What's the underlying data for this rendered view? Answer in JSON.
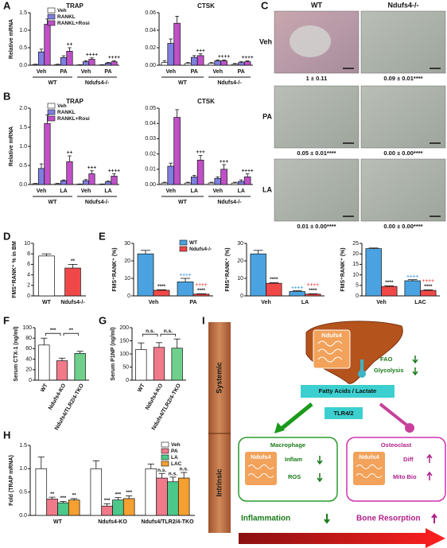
{
  "panel_labels": [
    "A",
    "B",
    "C",
    "D",
    "E",
    "F",
    "G",
    "H",
    "I"
  ],
  "chart_data": [
    {
      "type": "bar",
      "title": "TRAP",
      "y_label": "Relative mRNA",
      "categories": [
        "Veh",
        "PA",
        "Veh",
        "PA"
      ],
      "groups": [
        "WT",
        "Ndufs4-/-"
      ],
      "series": [
        {
          "name": "Veh",
          "color": "#ffffff",
          "values": [
            0.02,
            0.02,
            0.01,
            0.01
          ],
          "errors": [
            0.01,
            0.01,
            0.005,
            0.005
          ]
        },
        {
          "name": "RANKL",
          "color": "#7f7fe0",
          "values": [
            0.38,
            0.22,
            0.1,
            0.06
          ],
          "errors": [
            0.08,
            0.05,
            0.03,
            0.02
          ]
        },
        {
          "name": "RANKL+Rosi",
          "color": "#c050c8",
          "values": [
            1.17,
            0.4,
            0.17,
            0.1
          ],
          "errors": [
            0.15,
            0.1,
            0.04,
            0.03
          ],
          "sig_labels": [
            null,
            [
              "++"
            ],
            [
              "++++"
            ],
            [
              "++++"
            ]
          ]
        }
      ],
      "ylim": [
        0,
        1.5
      ],
      "yticks": [
        {
          "value": 0,
          "label": "0.0"
        },
        {
          "value": 0.5,
          "label": "0.5"
        },
        {
          "value": 1,
          "label": "1.0"
        },
        {
          "value": 1.5,
          "label": "1.5"
        }
      ],
      "legend": "top-left"
    },
    {
      "type": "bar",
      "title": "CTSK",
      "categories": [
        "Veh",
        "PA",
        "Veh",
        "PA"
      ],
      "groups": [
        "WT",
        "Ndufs4-/-"
      ],
      "series": [
        {
          "name": "Veh",
          "color": "#ffffff",
          "values": [
            0.003,
            0.002,
            0.002,
            0.001
          ],
          "errors": [
            0.002,
            0.001,
            0.001,
            0.001
          ]
        },
        {
          "name": "RANKL",
          "color": "#7f7fe0",
          "values": [
            0.025,
            0.009,
            0.005,
            0.003
          ],
          "errors": [
            0.005,
            0.002,
            0.001,
            0.001
          ]
        },
        {
          "name": "RANKL+Rosi",
          "color": "#c050c8",
          "values": [
            0.048,
            0.011,
            0.005,
            0.004
          ],
          "errors": [
            0.008,
            0.002,
            0.001,
            0.001
          ],
          "sig_labels": [
            null,
            [
              "+++"
            ],
            [
              "++++"
            ],
            [
              "++++"
            ]
          ]
        }
      ],
      "ylim": [
        0,
        0.06
      ],
      "yticks": [
        {
          "value": 0,
          "label": "0.00"
        },
        {
          "value": 0.02,
          "label": "0.02"
        },
        {
          "value": 0.04,
          "label": "0.04"
        },
        {
          "value": 0.06,
          "label": "0.06"
        }
      ]
    },
    {
      "type": "bar",
      "title": "TRAP",
      "y_label": "Relative mRNA",
      "categories": [
        "Veh",
        "LA",
        "Veh",
        "LA"
      ],
      "groups": [
        "WT",
        "Ndufs4-/-"
      ],
      "series": [
        {
          "name": "Veh",
          "color": "#ffffff",
          "values": [
            0.02,
            0.02,
            0.01,
            0.01
          ],
          "errors": [
            0.01,
            0.01,
            0.005,
            0.005
          ]
        },
        {
          "name": "RANKL",
          "color": "#7f7fe0",
          "values": [
            0.42,
            0.1,
            0.1,
            0.07
          ],
          "errors": [
            0.12,
            0.02,
            0.03,
            0.02
          ]
        },
        {
          "name": "RANKL+Rosi",
          "color": "#c050c8",
          "values": [
            1.6,
            0.6,
            0.28,
            0.22
          ],
          "errors": [
            0.22,
            0.15,
            0.08,
            0.06
          ],
          "sig_labels": [
            null,
            [
              "++"
            ],
            [
              "+++"
            ],
            [
              "++++"
            ]
          ]
        }
      ],
      "ylim": [
        0,
        2
      ],
      "yticks": [
        {
          "value": 0,
          "label": "0.0"
        },
        {
          "value": 0.5,
          "label": "0.5"
        },
        {
          "value": 1,
          "label": "1.0"
        },
        {
          "value": 1.5,
          "label": "1.5"
        },
        {
          "value": 2,
          "label": "2.0"
        }
      ],
      "legend": "top-left"
    },
    {
      "type": "bar",
      "title": "CTSK",
      "categories": [
        "Veh",
        "LA",
        "Veh",
        "LA"
      ],
      "groups": [
        "WT",
        "Ndufs4-/-"
      ],
      "series": [
        {
          "name": "Veh",
          "color": "#ffffff",
          "values": [
            0.001,
            0.001,
            0.001,
            0.001
          ],
          "errors": [
            0.0005,
            0.0005,
            0.0005,
            0.0005
          ]
        },
        {
          "name": "RANKL",
          "color": "#7f7fe0",
          "values": [
            0.012,
            0.005,
            0.004,
            0.002
          ],
          "errors": [
            0.002,
            0.001,
            0.001,
            0.001
          ]
        },
        {
          "name": "RANKL+Rosi",
          "color": "#c050c8",
          "values": [
            0.044,
            0.016,
            0.01,
            0.005
          ],
          "errors": [
            0.005,
            0.003,
            0.003,
            0.002
          ],
          "sig_labels": [
            null,
            [
              "+++"
            ],
            [
              "+++"
            ],
            [
              "++++"
            ]
          ]
        }
      ],
      "ylim": [
        0,
        0.05
      ],
      "yticks": [
        {
          "value": 0,
          "label": "0.00"
        },
        {
          "value": 0.01,
          "label": "0.01"
        },
        {
          "value": 0.02,
          "label": "0.02"
        },
        {
          "value": 0.03,
          "label": "0.03"
        },
        {
          "value": 0.04,
          "label": "0.04"
        },
        {
          "value": 0.05,
          "label": "0.05"
        }
      ]
    },
    {
      "type": "bar",
      "y_label": "FMS⁺RANK⁺ % in BM",
      "categories": [
        "WT",
        "Ndufs4-/-"
      ],
      "values": [
        7.6,
        5.3
      ],
      "errors": [
        0.4,
        0.7
      ],
      "colors": [
        "#ffffff",
        "#f04848"
      ],
      "sig_labels": [
        null,
        [
          "**"
        ]
      ],
      "ylim": [
        0,
        10
      ],
      "yticks": [
        0,
        2,
        4,
        6,
        8,
        10
      ]
    },
    {
      "type": "bar",
      "y_label": "FMS⁺RANK⁺ (%)",
      "categories": [
        "Veh",
        "PA"
      ],
      "sig_colored": true,
      "series": [
        {
          "name": "WT",
          "color": "#4aa3e0",
          "values": [
            24,
            8
          ],
          "errors": [
            2,
            2
          ],
          "sig_labels": [
            null,
            [
              "++++"
            ]
          ]
        },
        {
          "name": "Ndufs4-/-",
          "color": "#f04848",
          "values": [
            3.2,
            1
          ],
          "errors": [
            0.3,
            0.2
          ],
          "sig_labels": [
            [
              "****"
            ],
            [
              "++++",
              "****"
            ]
          ]
        }
      ],
      "ylim": [
        0,
        30
      ],
      "yticks": [
        0,
        10,
        20,
        30
      ],
      "legend": "top-right"
    },
    {
      "type": "bar",
      "y_label": "FMS⁺RANK⁺ (%)",
      "categories": [
        "Veh",
        "LA"
      ],
      "sig_colored": true,
      "series": [
        {
          "name": "WT",
          "color": "#4aa3e0",
          "values": [
            24,
            2.5
          ],
          "errors": [
            2,
            0.4
          ],
          "sig_labels": [
            null,
            [
              "++++"
            ]
          ]
        },
        {
          "name": "Ndufs4-/-",
          "color": "#f04848",
          "values": [
            7.2,
            1
          ],
          "errors": [
            0.4,
            0.2
          ],
          "sig_labels": [
            [
              "****"
            ],
            [
              "++++",
              "****"
            ]
          ]
        }
      ],
      "ylim": [
        0,
        30
      ],
      "yticks": [
        0,
        10,
        20,
        30
      ]
    },
    {
      "type": "bar",
      "y_label": "FMS⁺RANK⁺ (%)",
      "categories": [
        "Veh",
        "LAC"
      ],
      "sig_colored": true,
      "series": [
        {
          "name": "WT",
          "color": "#4aa3e0",
          "values": [
            22.5,
            7.2
          ],
          "errors": [
            0.3,
            0.5
          ],
          "sig_labels": [
            null,
            [
              "++++"
            ]
          ]
        },
        {
          "name": "Ndufs4-/-",
          "color": "#f04848",
          "values": [
            4.5,
            2.6
          ],
          "errors": [
            0.3,
            0.3
          ],
          "sig_labels": [
            [
              "****"
            ],
            [
              "++++",
              "****"
            ]
          ]
        }
      ],
      "ylim": [
        0,
        25
      ],
      "yticks": [
        0,
        5,
        10,
        15,
        20,
        25
      ]
    },
    {
      "type": "bar",
      "y_label": "Serum CTX-1 (ng/ml)",
      "categories": [
        "WT",
        "Ndufs4-KO",
        "Ndufs4/TLR2/4-TKO"
      ],
      "values": [
        67,
        37,
        51
      ],
      "errors": [
        13,
        5,
        4
      ],
      "colors": [
        "#ffffff",
        "#f07a8a",
        "#6fd08c"
      ],
      "brackets": [
        "***",
        "**"
      ],
      "rotate_labels": true,
      "ylim": [
        0,
        100
      ],
      "yticks": [
        0,
        20,
        40,
        60,
        80,
        100
      ]
    },
    {
      "type": "bar",
      "y_label": "Serum P1NP (ng/ml)",
      "categories": [
        "WT",
        "Ndufs4-KO",
        "Ndufs4/TLR2/4-TKO"
      ],
      "values": [
        117,
        125,
        122
      ],
      "errors": [
        25,
        18,
        35
      ],
      "colors": [
        "#ffffff",
        "#f07a8a",
        "#6fd08c"
      ],
      "brackets": [
        "n.s.",
        "n.s."
      ],
      "rotate_labels": true,
      "ylim": [
        0,
        200
      ],
      "yticks": [
        0,
        50,
        100,
        150,
        200
      ]
    },
    {
      "type": "bar",
      "y_label": "Fold (TRAP mRNA)",
      "categories": [
        "WT",
        "Ndufs4-KO",
        "Ndufs4/TLR2/4-TKO"
      ],
      "series": [
        {
          "name": "Veh",
          "color": "#ffffff",
          "values": [
            1,
            1,
            1
          ],
          "errors": [
            0.25,
            0.17,
            0.1
          ]
        },
        {
          "name": "PA",
          "color": "#f07a8a",
          "values": [
            0.35,
            0.2,
            0.8
          ],
          "errors": [
            0.04,
            0.05,
            0.1
          ],
          "sig_labels": [
            [
              "**"
            ],
            [
              "***"
            ],
            [
              "n.s."
            ]
          ]
        },
        {
          "name": "LA",
          "color": "#4cc98a",
          "values": [
            0.27,
            0.33,
            0.72
          ],
          "errors": [
            0.03,
            0.05,
            0.1
          ],
          "sig_labels": [
            [
              "***"
            ],
            [
              "***"
            ],
            [
              "n.s."
            ]
          ]
        },
        {
          "name": "LAC",
          "color": "#f5a030",
          "values": [
            0.33,
            0.36,
            0.8
          ],
          "errors": [
            0.03,
            0.06,
            0.12
          ],
          "sig_labels": [
            [
              "**"
            ],
            [
              "***"
            ],
            [
              "n.s."
            ]
          ]
        }
      ],
      "ylim": [
        0,
        1.5
      ],
      "yticks": [
        {
          "value": 0,
          "label": "0.0"
        },
        {
          "value": 0.5,
          "label": "0.5"
        },
        {
          "value": 1,
          "label": "1.0"
        },
        {
          "value": 1.5,
          "label": "1.5"
        }
      ],
      "legend": "top-right"
    }
  ],
  "micrographs": {
    "columns": [
      "WT",
      "Ndufs4-/-"
    ],
    "rows": [
      "Veh",
      "PA",
      "LA"
    ],
    "captions": [
      [
        "1 ± 0.11",
        "0.09 ± 0.01****"
      ],
      [
        "0.05 ± 0.01****",
        "0.00 ± 0.00****"
      ],
      [
        "0.01 ± 0.00****",
        "0.00 ± 0.00****"
      ]
    ]
  },
  "diagram": {
    "levels": [
      "Systemic",
      "Intrinsic"
    ],
    "liver": "Ndufs4",
    "metabolism": [
      "FAO",
      "Glycolysis"
    ],
    "metabolites": "Fatty Acids / Lactate",
    "receptor": "TLR4/2",
    "macrophage": {
      "title": "Macrophage",
      "gene": "Ndufs4",
      "effects": [
        "Inflam",
        "ROS"
      ],
      "outcome": "Inflammation"
    },
    "osteoclast": {
      "title": "Osteoclast",
      "gene": "Ndufs4",
      "effects": [
        "Diff",
        "Mito Bio"
      ],
      "outcome": "Bone Resorption"
    }
  }
}
